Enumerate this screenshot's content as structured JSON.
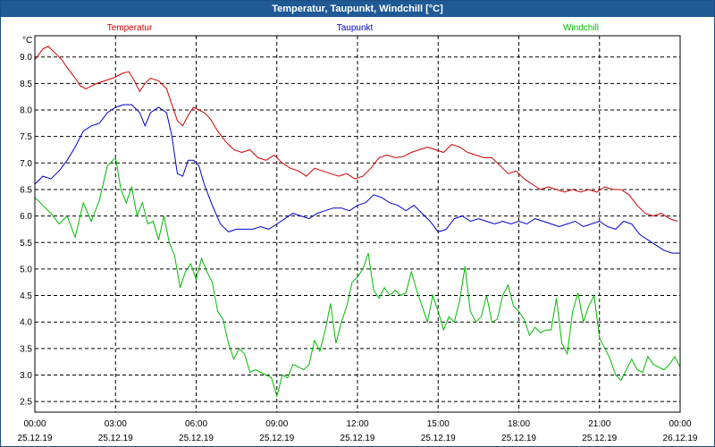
{
  "window": {
    "title": "Temperatur, Taupunkt, Windchill [°C]"
  },
  "chart_data": {
    "type": "line",
    "title": "Temperatur, Taupunkt, Windchill [°C]",
    "unit_label": "°C",
    "ylim": [
      2.3,
      9.4
    ],
    "xlim": [
      0,
      24
    ],
    "grid": true,
    "yticks": [
      9.0,
      8.5,
      8.0,
      7.5,
      7.0,
      6.5,
      6.0,
      5.5,
      5.0,
      4.5,
      4.0,
      3.5,
      3.0,
      2.5
    ],
    "xticks": [
      {
        "hour": 0,
        "time": "00:00",
        "date": "25.12.19"
      },
      {
        "hour": 3,
        "time": "03:00",
        "date": "25.12.19"
      },
      {
        "hour": 6,
        "time": "06:00",
        "date": "25.12.19"
      },
      {
        "hour": 9,
        "time": "09:00",
        "date": "25.12.19"
      },
      {
        "hour": 12,
        "time": "12:00",
        "date": "25.12.19"
      },
      {
        "hour": 15,
        "time": "15:00",
        "date": "25.12.19"
      },
      {
        "hour": 18,
        "time": "18:00",
        "date": "25.12.19"
      },
      {
        "hour": 21,
        "time": "21:00",
        "date": "25.12.19"
      },
      {
        "hour": 24,
        "time": "00:00",
        "date": "26.12.19"
      }
    ],
    "series": [
      {
        "name": "Temperatur",
        "color": "#cc0000",
        "x": [
          0,
          0.3,
          0.5,
          0.8,
          1.0,
          1.2,
          1.5,
          1.7,
          1.9,
          2.1,
          2.3,
          2.6,
          2.9,
          3.1,
          3.3,
          3.5,
          3.7,
          3.9,
          4.1,
          4.3,
          4.6,
          4.9,
          5.1,
          5.3,
          5.5,
          5.7,
          5.9,
          6.1,
          6.3,
          6.5,
          6.8,
          7.1,
          7.4,
          7.7,
          8.0,
          8.3,
          8.6,
          8.9,
          9.2,
          9.5,
          9.8,
          10.1,
          10.4,
          10.7,
          11.0,
          11.3,
          11.6,
          11.9,
          12.2,
          12.5,
          12.8,
          13.1,
          13.4,
          13.7,
          14.0,
          14.3,
          14.6,
          14.9,
          15.2,
          15.5,
          15.8,
          16.1,
          16.4,
          16.7,
          17.0,
          17.3,
          17.6,
          17.9,
          18.2,
          18.5,
          18.8,
          19.1,
          19.4,
          19.7,
          20.0,
          20.3,
          20.6,
          20.9,
          21.2,
          21.5,
          21.8,
          22.1,
          22.4,
          22.7,
          23.0,
          23.3,
          23.6,
          23.9
        ],
        "values": [
          8.95,
          9.15,
          9.2,
          9.05,
          8.95,
          8.8,
          8.6,
          8.45,
          8.4,
          8.45,
          8.5,
          8.55,
          8.6,
          8.65,
          8.7,
          8.72,
          8.55,
          8.35,
          8.5,
          8.6,
          8.55,
          8.4,
          8.1,
          7.8,
          7.7,
          7.9,
          8.05,
          8.0,
          7.95,
          7.85,
          7.6,
          7.4,
          7.25,
          7.2,
          7.25,
          7.1,
          7.05,
          7.15,
          7.0,
          6.9,
          6.85,
          6.75,
          6.9,
          6.85,
          6.8,
          6.75,
          6.8,
          6.7,
          6.75,
          6.9,
          7.1,
          7.15,
          7.1,
          7.12,
          7.2,
          7.25,
          7.3,
          7.25,
          7.2,
          7.35,
          7.3,
          7.2,
          7.15,
          7.1,
          7.1,
          6.95,
          6.8,
          6.85,
          6.7,
          6.6,
          6.5,
          6.55,
          6.5,
          6.45,
          6.5,
          6.45,
          6.5,
          6.45,
          6.55,
          6.5,
          6.5,
          6.4,
          6.2,
          6.05,
          6.0,
          6.05,
          5.95,
          5.9
        ]
      },
      {
        "name": "Taupunkt",
        "color": "#0000cc",
        "x": [
          0,
          0.3,
          0.6,
          0.9,
          1.2,
          1.5,
          1.8,
          2.1,
          2.4,
          2.7,
          3.0,
          3.3,
          3.6,
          3.9,
          4.1,
          4.3,
          4.6,
          4.9,
          5.1,
          5.3,
          5.5,
          5.7,
          5.9,
          6.1,
          6.3,
          6.6,
          6.9,
          7.2,
          7.5,
          7.8,
          8.1,
          8.4,
          8.7,
          9.0,
          9.3,
          9.6,
          9.9,
          10.2,
          10.5,
          10.8,
          11.1,
          11.4,
          11.7,
          12.0,
          12.3,
          12.6,
          12.9,
          13.2,
          13.5,
          13.8,
          14.1,
          14.4,
          14.7,
          15.0,
          15.3,
          15.6,
          15.9,
          16.2,
          16.5,
          16.8,
          17.1,
          17.4,
          17.7,
          18.0,
          18.3,
          18.6,
          18.9,
          19.2,
          19.5,
          19.8,
          20.1,
          20.4,
          20.7,
          21.0,
          21.3,
          21.6,
          21.9,
          22.2,
          22.5,
          22.8,
          23.1,
          23.4,
          23.7,
          24.0
        ],
        "values": [
          6.6,
          6.75,
          6.7,
          6.85,
          7.05,
          7.3,
          7.6,
          7.7,
          7.75,
          7.95,
          8.05,
          8.1,
          8.1,
          7.95,
          7.7,
          7.95,
          8.05,
          7.95,
          7.5,
          6.8,
          6.75,
          7.05,
          7.05,
          6.95,
          6.6,
          6.2,
          5.85,
          5.7,
          5.75,
          5.75,
          5.75,
          5.8,
          5.75,
          5.85,
          5.95,
          6.05,
          6.0,
          5.95,
          6.05,
          6.1,
          6.15,
          6.15,
          6.1,
          6.2,
          6.25,
          6.4,
          6.35,
          6.25,
          6.2,
          6.1,
          6.2,
          6.05,
          5.9,
          5.7,
          5.75,
          5.95,
          6.0,
          5.9,
          5.95,
          5.9,
          5.85,
          5.9,
          5.85,
          5.9,
          5.85,
          5.95,
          5.9,
          5.85,
          5.8,
          5.85,
          5.9,
          5.8,
          5.85,
          5.9,
          5.8,
          5.75,
          5.9,
          5.85,
          5.65,
          5.55,
          5.45,
          5.35,
          5.3,
          5.3
        ]
      },
      {
        "name": "Windchill",
        "color": "#00bb00",
        "x": [
          0,
          0.3,
          0.6,
          0.9,
          1.2,
          1.5,
          1.8,
          2.1,
          2.4,
          2.7,
          3.0,
          3.2,
          3.4,
          3.6,
          3.8,
          4.0,
          4.2,
          4.4,
          4.6,
          4.8,
          5.0,
          5.2,
          5.4,
          5.6,
          5.8,
          6.0,
          6.2,
          6.4,
          6.6,
          6.8,
          7.0,
          7.2,
          7.4,
          7.6,
          7.8,
          8.0,
          8.2,
          8.4,
          8.6,
          8.8,
          9.0,
          9.2,
          9.4,
          9.6,
          9.8,
          10.0,
          10.2,
          10.4,
          10.6,
          10.8,
          11.0,
          11.2,
          11.4,
          11.6,
          11.8,
          12.0,
          12.2,
          12.4,
          12.6,
          12.8,
          13.0,
          13.2,
          13.4,
          13.6,
          13.8,
          14.0,
          14.2,
          14.4,
          14.6,
          14.8,
          15.0,
          15.2,
          15.4,
          15.6,
          15.8,
          16.0,
          16.2,
          16.4,
          16.6,
          16.8,
          17.0,
          17.2,
          17.4,
          17.6,
          17.8,
          18.0,
          18.2,
          18.4,
          18.6,
          18.8,
          19.0,
          19.2,
          19.4,
          19.6,
          19.8,
          20.0,
          20.2,
          20.4,
          20.6,
          20.8,
          21.0,
          21.2,
          21.4,
          21.6,
          21.8,
          22.0,
          22.2,
          22.4,
          22.6,
          22.8,
          23.0,
          23.2,
          23.4,
          23.6,
          23.8,
          24.0
        ],
        "values": [
          6.35,
          6.2,
          6.05,
          5.85,
          6.0,
          5.6,
          6.25,
          5.9,
          6.3,
          6.95,
          7.1,
          6.5,
          6.25,
          6.55,
          6.0,
          6.25,
          5.85,
          5.9,
          5.55,
          6.0,
          5.5,
          5.25,
          4.65,
          4.95,
          5.1,
          4.8,
          5.2,
          4.95,
          4.75,
          4.2,
          4.05,
          3.6,
          3.3,
          3.5,
          3.4,
          3.05,
          3.1,
          3.05,
          3.0,
          2.95,
          2.6,
          3.0,
          2.95,
          3.2,
          3.15,
          3.1,
          3.2,
          3.65,
          3.45,
          3.85,
          4.35,
          3.6,
          4.0,
          4.3,
          4.75,
          4.85,
          5.0,
          5.3,
          4.6,
          4.45,
          4.65,
          4.5,
          4.6,
          4.5,
          4.55,
          4.95,
          4.6,
          4.3,
          4.0,
          4.5,
          4.2,
          3.85,
          4.1,
          4.0,
          4.4,
          5.05,
          4.2,
          4.0,
          4.1,
          4.5,
          4.0,
          4.05,
          4.5,
          4.7,
          4.3,
          4.2,
          4.05,
          3.75,
          3.9,
          3.8,
          3.85,
          3.85,
          4.45,
          3.6,
          3.4,
          4.2,
          4.55,
          4.0,
          4.3,
          4.5,
          3.7,
          3.5,
          3.3,
          3.0,
          2.9,
          3.1,
          3.3,
          3.1,
          3.05,
          3.35,
          3.2,
          3.15,
          3.1,
          3.2,
          3.35,
          3.15
        ]
      }
    ]
  }
}
